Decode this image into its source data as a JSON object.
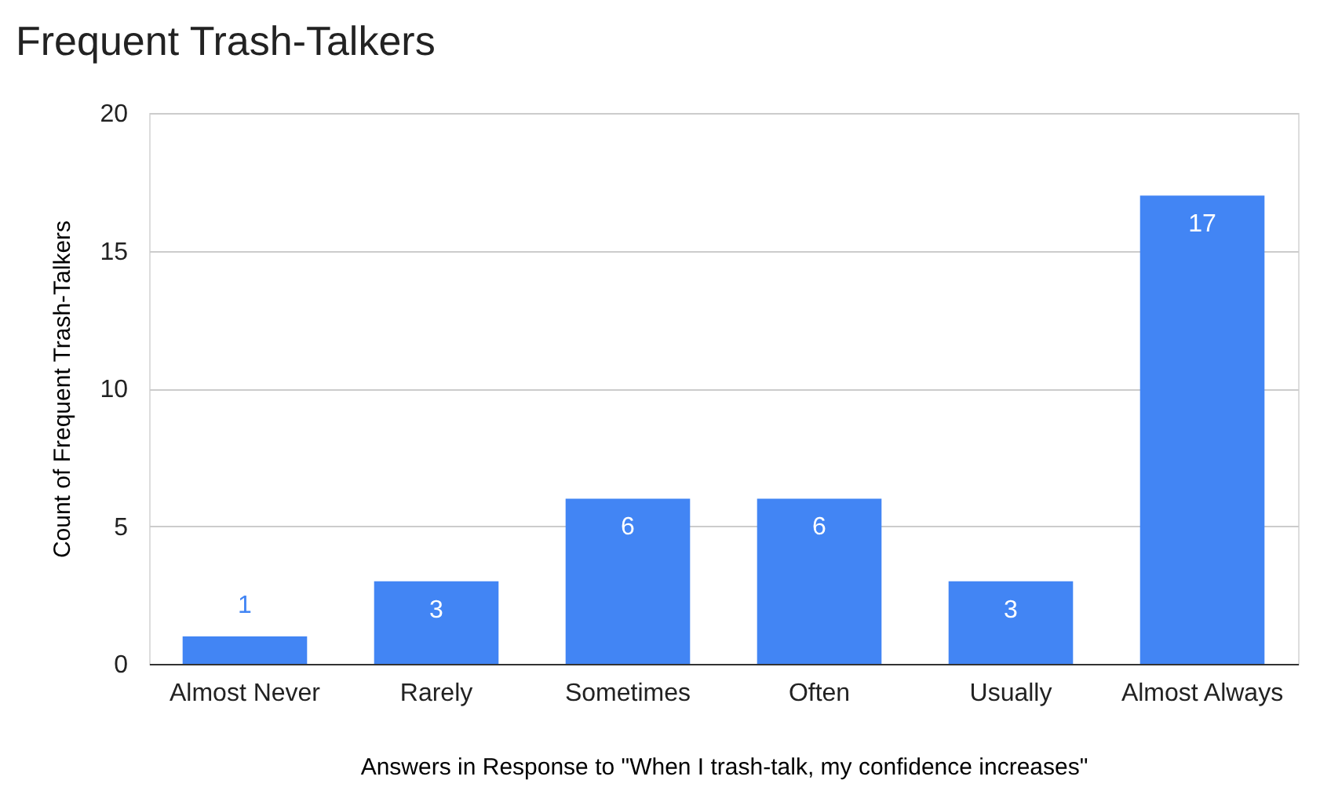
{
  "chart_data": {
    "type": "bar",
    "title": "Frequent Trash-Talkers",
    "xlabel": "Answers in Response to \"When I trash-talk, my confidence increases\"",
    "ylabel": "Count of Frequent Trash-Talkers",
    "categories": [
      "Almost Never",
      "Rarely",
      "Sometimes",
      "Often",
      "Usually",
      "Almost Always"
    ],
    "values": [
      1,
      3,
      6,
      6,
      3,
      17
    ],
    "color": "#4285f4",
    "ylim": [
      0,
      20
    ],
    "yticks": [
      0,
      5,
      10,
      15,
      20
    ],
    "grid": "y",
    "data_labels": true
  }
}
